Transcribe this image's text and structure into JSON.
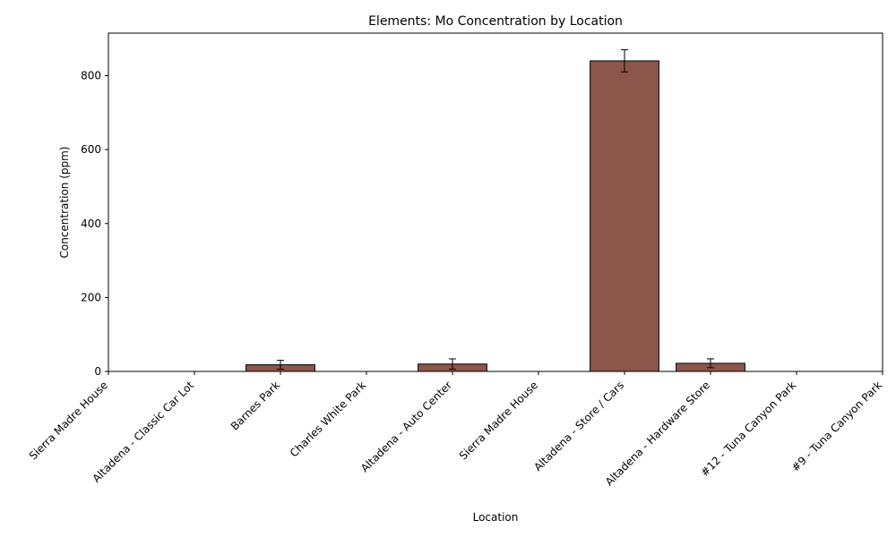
{
  "chart_data": {
    "type": "bar",
    "title": "Elements: Mo Concentration by Location",
    "xlabel": "Location",
    "ylabel": "Concentration (ppm)",
    "categories": [
      "Sierra Madre House",
      "Altadena - Classic Car Lot",
      "Barnes Park",
      "Charles White Park",
      "Altadena - Auto Center",
      "Sierra Madre House",
      "Altadena - Store / Cars",
      "Altadena - Hardware Store",
      "#12 - Tuna Canyon Park",
      "#9 - Tuna Canyon Park"
    ],
    "values": [
      null,
      null,
      18,
      null,
      20,
      null,
      840,
      22,
      null,
      null
    ],
    "errors": [
      null,
      null,
      12,
      null,
      14,
      null,
      30,
      12,
      null,
      null
    ],
    "ylim": [
      0,
      915
    ],
    "yticks": [
      0,
      200,
      400,
      600,
      800
    ],
    "grid": false,
    "legend": "none",
    "bar_color": "#8c564b",
    "edge_color": "#000000"
  }
}
